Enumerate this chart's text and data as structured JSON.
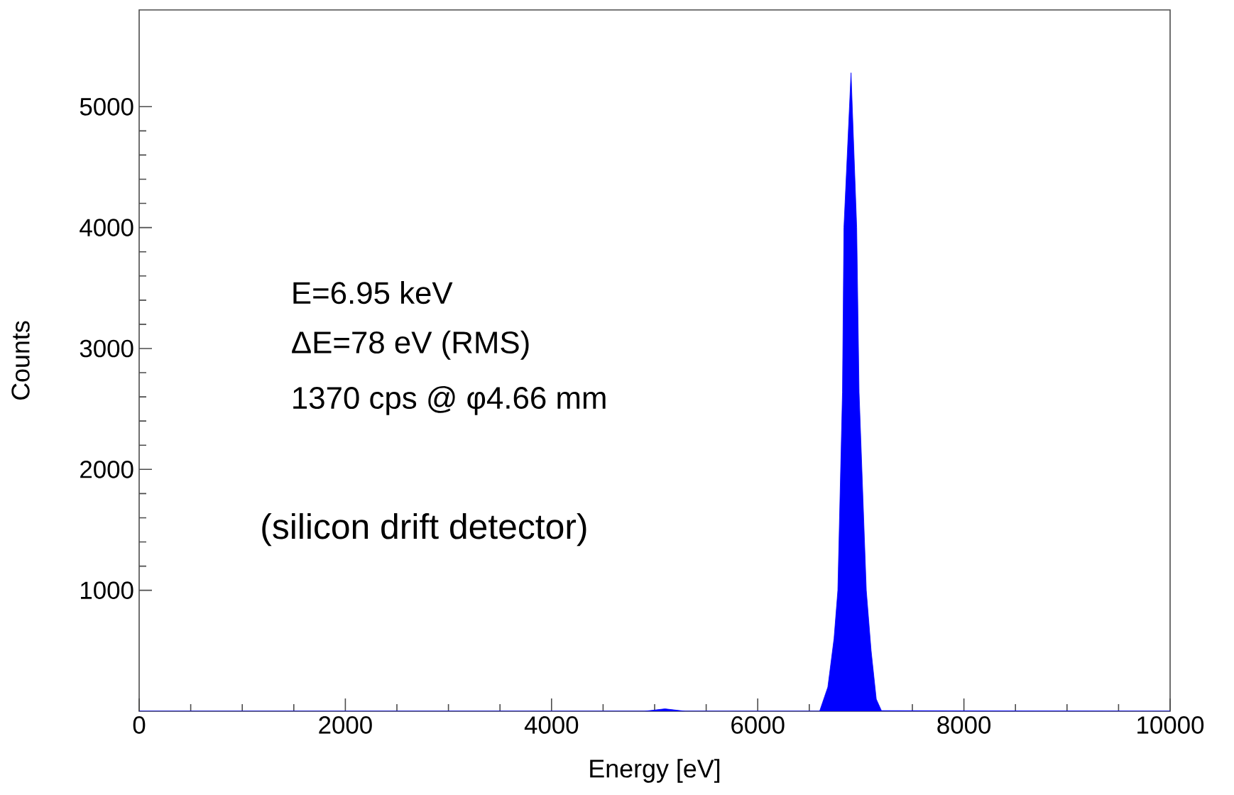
{
  "chart_data": {
    "type": "area",
    "xlabel": "Energy [eV]",
    "ylabel": "Counts",
    "x": [
      0,
      4900,
      5100,
      5300,
      5500,
      6000,
      6500,
      6600,
      6680,
      6740,
      6777,
      6822,
      6836,
      6905,
      6960,
      6983,
      7053,
      7100,
      7150,
      7200,
      10000
    ],
    "series": [
      {
        "color": "#0000ff",
        "values": [
          0,
          0,
          20,
          0,
          0,
          0,
          0,
          0,
          200,
          600,
          1000,
          2640,
          4000,
          5280,
          4000,
          2640,
          1000,
          500,
          100,
          5,
          0
        ]
      }
    ],
    "xlim": [
      0,
      10000
    ],
    "ylim": [
      0,
      5800
    ],
    "xticks": [
      0,
      2000,
      4000,
      6000,
      8000,
      10000
    ],
    "yticks": [
      1000,
      2000,
      3000,
      4000,
      5000
    ],
    "annotations": [
      "E=6.95 keV",
      "ΔE=78 eV (RMS)",
      "1370 cps @ φ4.66 mm",
      "(silicon drift detector)"
    ]
  }
}
